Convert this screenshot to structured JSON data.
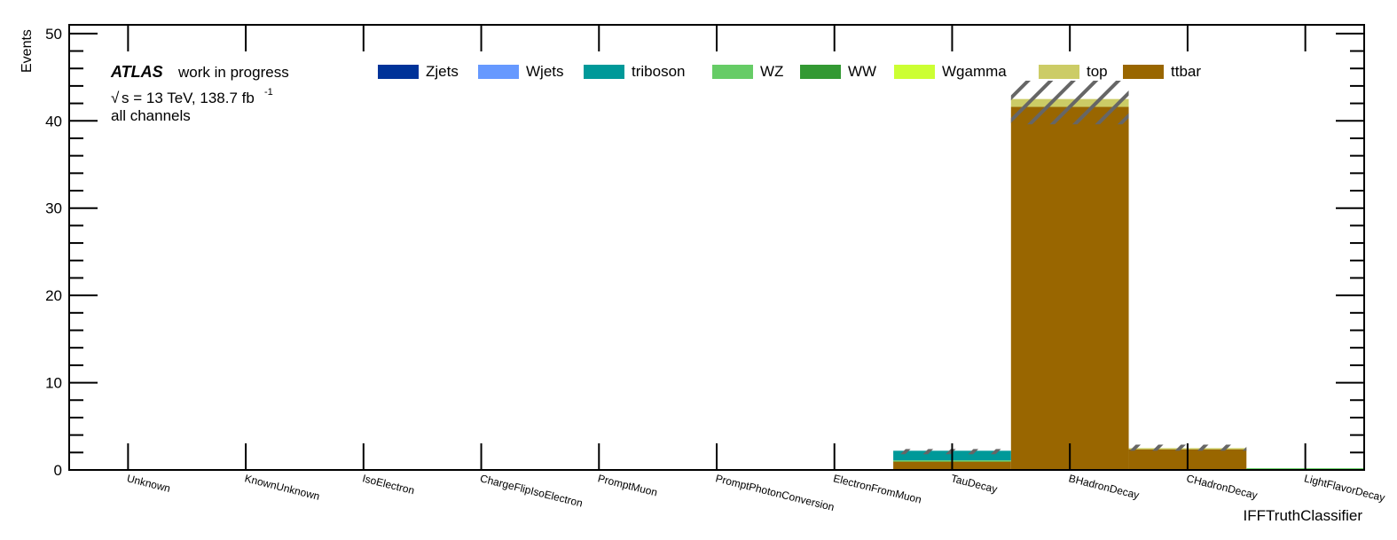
{
  "chart_data": {
    "type": "bar",
    "stacked": true,
    "ylabel": "Events",
    "xlabel": "IFFTruthClassifier",
    "ylim": [
      0,
      51
    ],
    "yticks": [
      0,
      10,
      20,
      30,
      40,
      50
    ],
    "categories": [
      "Unknown",
      "KnownUnknown",
      "IsoElectron",
      "ChargeFlipIsoElectron",
      "PromptMuon",
      "PromptPhotonConversion",
      "ElectronFromMuon",
      "TauDecay",
      "BHadronDecay",
      "CHadronDecay",
      "LightFlavorDecay"
    ],
    "series": [
      {
        "name": "ttbar",
        "color": "#996600",
        "values": [
          0,
          0,
          0,
          0,
          0,
          0,
          0,
          1.0,
          41.6,
          2.4,
          0
        ]
      },
      {
        "name": "top",
        "color": "#cccc66",
        "values": [
          0,
          0,
          0,
          0,
          0,
          0,
          0,
          0,
          0.9,
          0.1,
          0
        ]
      },
      {
        "name": "Wgamma",
        "color": "#ccff33",
        "values": [
          0,
          0,
          0,
          0,
          0,
          0,
          0,
          0,
          0,
          0,
          0
        ]
      },
      {
        "name": "WW",
        "color": "#339933",
        "values": [
          0,
          0,
          0,
          0,
          0,
          0,
          0,
          0,
          0,
          0,
          0.1
        ]
      },
      {
        "name": "WZ",
        "color": "#66cc66",
        "values": [
          0,
          0,
          0,
          0,
          0,
          0,
          0,
          0.1,
          0,
          0,
          0.1
        ]
      },
      {
        "name": "triboson",
        "color": "#009999",
        "values": [
          0,
          0,
          0,
          0,
          0,
          0,
          0,
          1.1,
          0,
          0,
          0
        ]
      },
      {
        "name": "Wjets",
        "color": "#6699ff",
        "values": [
          0,
          0,
          0,
          0,
          0,
          0,
          0,
          0,
          0,
          0,
          0
        ]
      },
      {
        "name": "Zjets",
        "color": "#003399",
        "values": [
          0,
          0,
          0,
          0,
          0,
          0,
          0,
          0,
          0,
          0,
          0
        ]
      }
    ],
    "uncertainty_band": [
      {
        "category": "TauDecay",
        "low": 1.8,
        "high": 2.4
      },
      {
        "category": "BHadronDecay",
        "low": 39.6,
        "high": 44.6
      },
      {
        "category": "CHadronDecay",
        "low": 2.2,
        "high": 2.9
      }
    ],
    "legend": [
      "Zjets",
      "Wjets",
      "triboson",
      "WZ",
      "WW",
      "Wgamma",
      "top",
      "ttbar"
    ],
    "legend_position": "top"
  },
  "labels": {
    "experiment": "ATLAS",
    "status": "work in progress",
    "energy": "s = 13 TeV, 138.7 fb",
    "lumi_exponent": "-1",
    "channel": "all channels",
    "sqrt_symbol": "√"
  }
}
